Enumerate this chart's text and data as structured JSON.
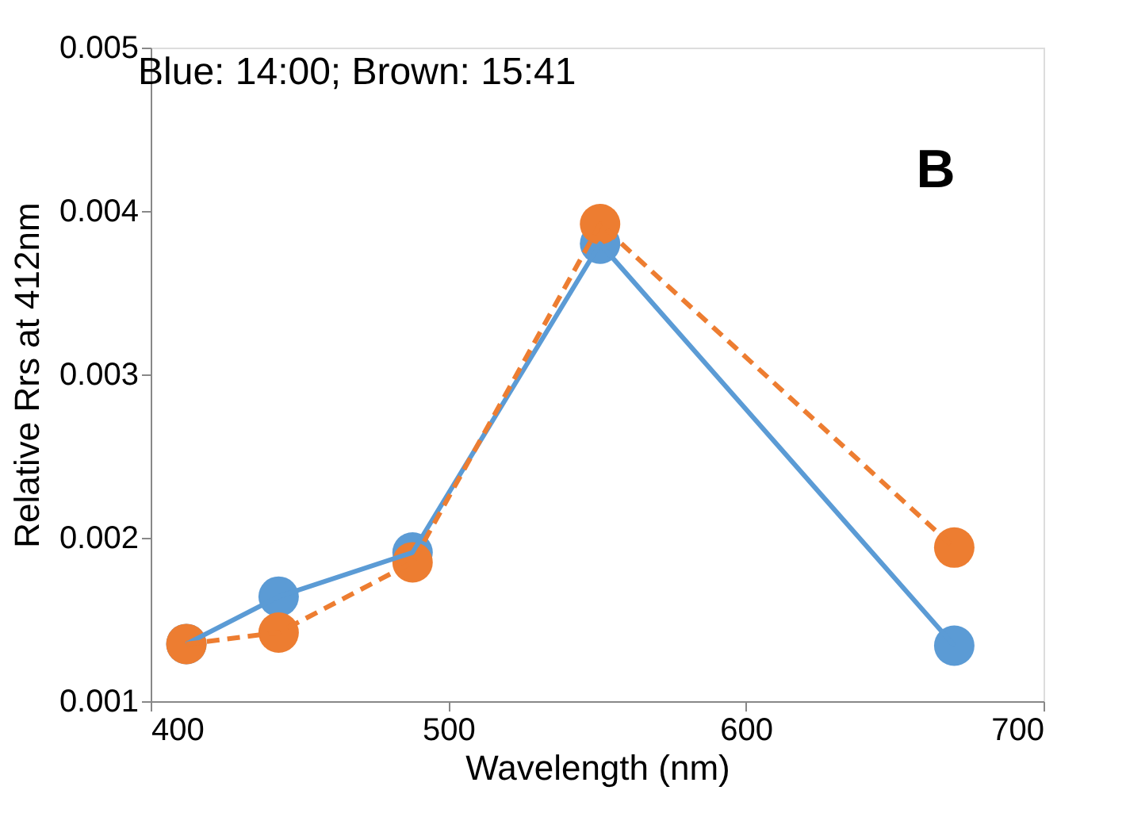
{
  "chart_data": {
    "type": "line",
    "xlabel": "Wavelength (nm)",
    "ylabel": "Relative Rrs at 412nm",
    "annotations": [
      "Blue: 14:00; Brown: 15:41",
      "B"
    ],
    "x": [
      412,
      443,
      488,
      551,
      670
    ],
    "series": [
      {
        "color": "#5b9bd5",
        "values": [
          0.00135,
          0.00164,
          0.00191,
          0.0038,
          0.00134
        ],
        "line_style": "solid"
      },
      {
        "color": "#ed7d31",
        "values": [
          0.00135,
          0.00142,
          0.00185,
          0.00392,
          0.00194
        ],
        "line_style": "dashed"
      }
    ],
    "xlim": [
      400,
      700
    ],
    "xticks": [
      400,
      500,
      600,
      700
    ],
    "ylim": [
      0.001,
      0.005
    ],
    "yticks": [
      0.001,
      0.002,
      0.003,
      0.004,
      0.005
    ],
    "marker": "circle",
    "grid": false
  }
}
